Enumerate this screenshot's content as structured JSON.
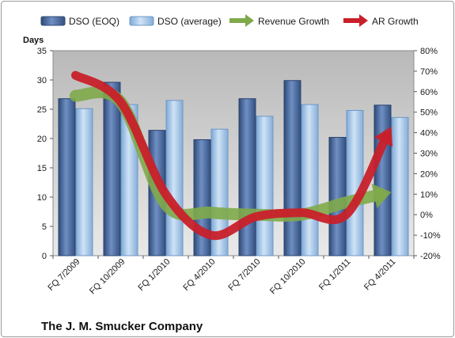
{
  "chart_data": {
    "type": "bar",
    "title": "",
    "footer_title": "The J. M. Smucker Company",
    "ylabel": "Days",
    "ylabel_right": "",
    "categories": [
      "FQ 7/2009",
      "FQ 10/2009",
      "FQ 1/2010",
      "FQ 4/2010",
      "FQ 7/2010",
      "FQ 10/2010",
      "FQ 1/2011",
      "FQ 4/2011"
    ],
    "ylim": [
      0,
      35
    ],
    "yticks": [
      "0",
      "5",
      "10",
      "15",
      "20",
      "25",
      "30",
      "35"
    ],
    "y2lim": [
      -20,
      80
    ],
    "y2ticks": [
      "-20%",
      "-10%",
      "0%",
      "10%",
      "20%",
      "30%",
      "40%",
      "50%",
      "60%",
      "70%",
      "80%"
    ],
    "grid": false,
    "legend_position": "top",
    "series": [
      {
        "name": "DSO (EOQ)",
        "kind": "bar",
        "axis": "left",
        "color": "#4a6aa0",
        "values": [
          26.8,
          29.6,
          21.4,
          19.8,
          26.8,
          29.9,
          20.2,
          25.7
        ]
      },
      {
        "name": "DSO (average)",
        "kind": "bar",
        "axis": "left",
        "color": "#9dc3e6",
        "values": [
          25.1,
          25.8,
          26.5,
          21.6,
          23.8,
          25.8,
          24.8,
          23.6
        ]
      },
      {
        "name": "Revenue Growth",
        "kind": "arrow-line",
        "axis": "right",
        "color": "#7faa4a",
        "values": [
          58,
          55,
          5,
          1,
          0,
          0,
          6,
          11
        ]
      },
      {
        "name": "AR Growth",
        "kind": "arrow-line",
        "axis": "right",
        "color": "#c8202a",
        "values": [
          68,
          55,
          10,
          -10,
          -1,
          1,
          0,
          43
        ]
      }
    ]
  }
}
